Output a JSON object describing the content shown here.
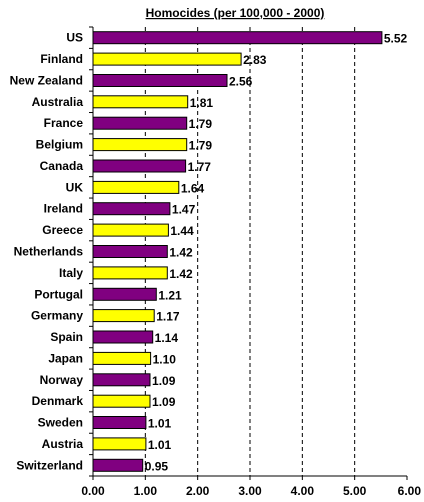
{
  "chart_data": {
    "type": "bar",
    "orientation": "horizontal",
    "title": "Homocides (per 100,000 - 2000)",
    "categories": [
      "US",
      "Finland",
      "New Zealand",
      "Australia",
      "France",
      "Belgium",
      "Canada",
      "UK",
      "Ireland",
      "Greece",
      "Netherlands",
      "Italy",
      "Portugal",
      "Germany",
      "Spain",
      "Japan",
      "Norway",
      "Denmark",
      "Sweden",
      "Austria",
      "Switzerland"
    ],
    "values": [
      5.52,
      2.83,
      2.56,
      1.81,
      1.79,
      1.79,
      1.77,
      1.64,
      1.47,
      1.44,
      1.42,
      1.42,
      1.21,
      1.17,
      1.14,
      1.1,
      1.09,
      1.09,
      1.01,
      1.01,
      0.95
    ],
    "value_labels": [
      "5.52",
      "2.83",
      "2.56",
      "1.81",
      "1.79",
      "1.79",
      "1.77",
      "1.64",
      "1.47",
      "1.44",
      "1.42",
      "1.42",
      "1.21",
      "1.17",
      "1.14",
      "1.10",
      "1.09",
      "1.09",
      "1.01",
      "1.01",
      "0.95"
    ],
    "bar_colors": [
      "#800080",
      "#ffff00",
      "#800080",
      "#ffff00",
      "#800080",
      "#ffff00",
      "#800080",
      "#ffff00",
      "#800080",
      "#ffff00",
      "#800080",
      "#ffff00",
      "#800080",
      "#ffff00",
      "#800080",
      "#ffff00",
      "#800080",
      "#ffff00",
      "#800080",
      "#ffff00",
      "#800080"
    ],
    "xlim": [
      0,
      6
    ],
    "x_ticks": [
      "0.00",
      "1.00",
      "2.00",
      "3.00",
      "4.00",
      "5.00",
      "6.00"
    ],
    "grid": "vertical dashed",
    "xlabel": "",
    "ylabel": ""
  }
}
